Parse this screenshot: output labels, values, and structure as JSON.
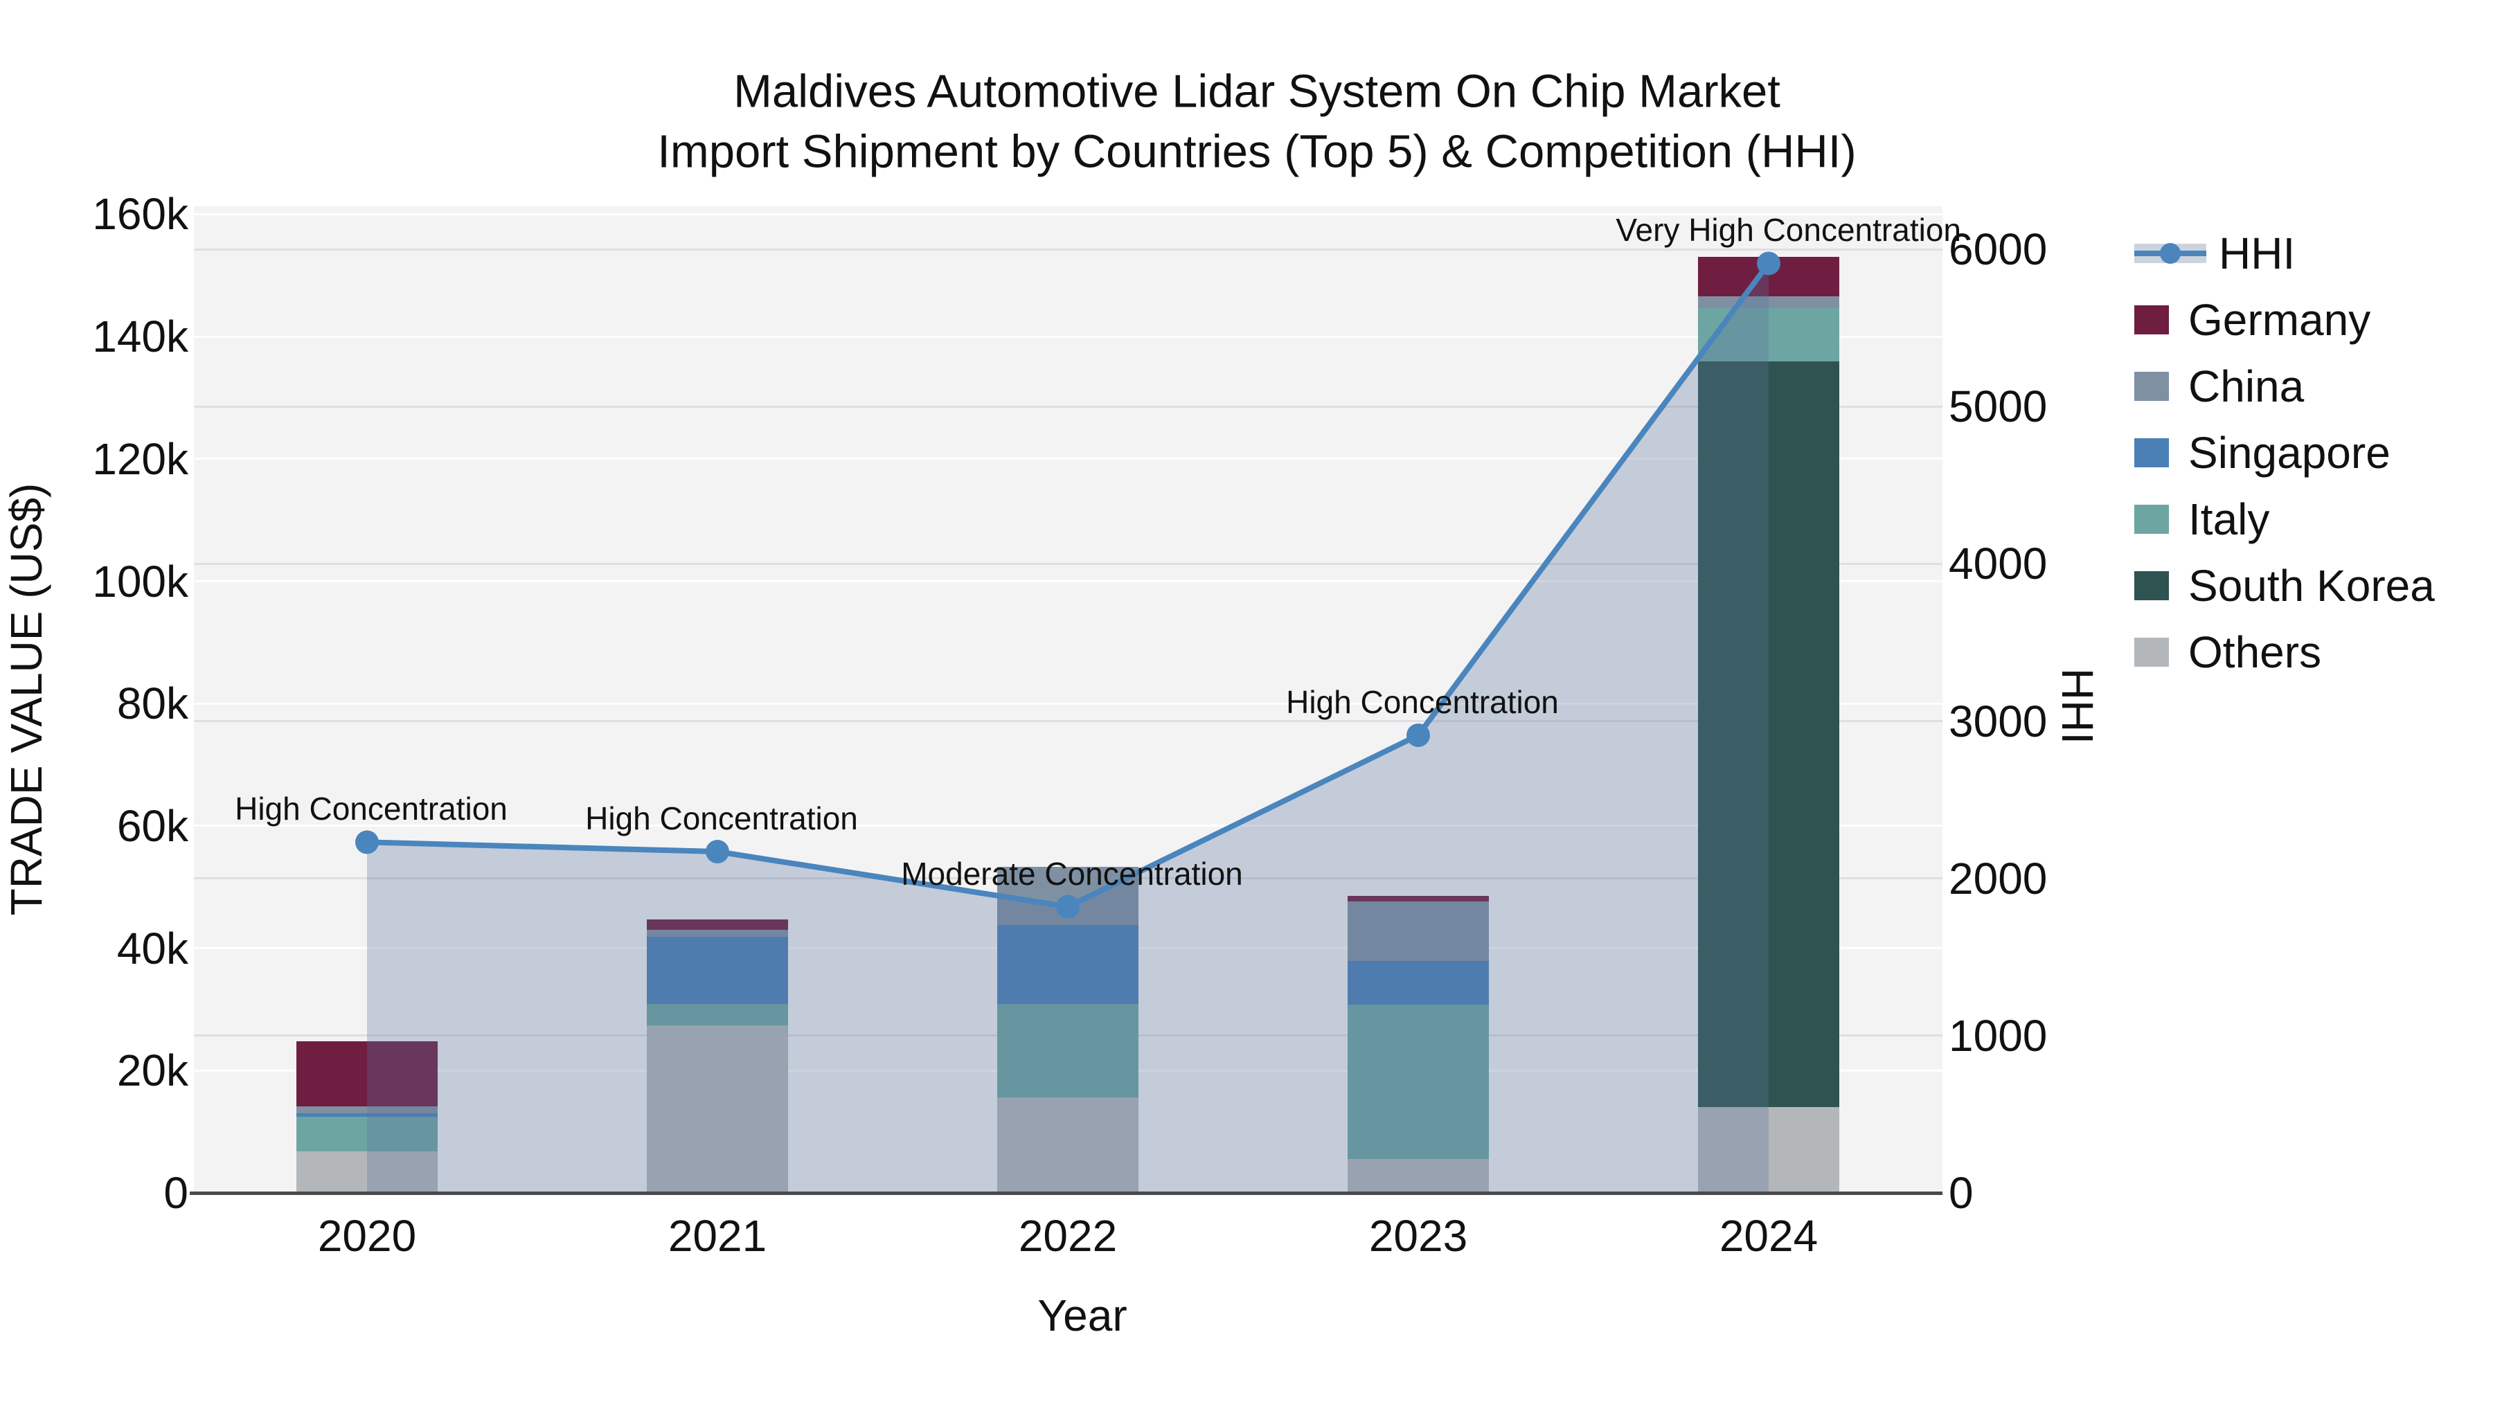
{
  "title": {
    "line1": "Maldives Automotive Lidar System On Chip Market",
    "line2": "Import Shipment by Countries (Top 5) & Competition (HHI)"
  },
  "chart_data": {
    "type": "bar+line",
    "categories": [
      "2020",
      "2021",
      "2022",
      "2023",
      "2024"
    ],
    "series": [
      {
        "name": "Others",
        "color": "#b4b7ba",
        "values": [
          6800,
          27400,
          15600,
          5500,
          14000
        ]
      },
      {
        "name": "South Korea",
        "color": "#2e5350",
        "values": [
          0,
          0,
          0,
          0,
          121900
        ]
      },
      {
        "name": "Italy",
        "color": "#6da5a3",
        "values": [
          5600,
          3500,
          15300,
          25300,
          8800
        ]
      },
      {
        "name": "Singapore",
        "color": "#4a80b6",
        "values": [
          600,
          11000,
          12900,
          7100,
          0
        ]
      },
      {
        "name": "China",
        "color": "#8090a3",
        "values": [
          1100,
          1100,
          9500,
          9700,
          1900
        ]
      },
      {
        "name": "Germany",
        "color": "#6f1d40",
        "values": [
          10700,
          1700,
          0,
          1000,
          6400
        ]
      }
    ],
    "line": {
      "name": "HHI",
      "color": "#4a85bd",
      "area_fill": "rgba(90,115,155,0.30)",
      "values": [
        2230,
        2170,
        1820,
        2910,
        5910
      ]
    },
    "annotations": [
      {
        "year": "2020",
        "text": "High Concentration"
      },
      {
        "year": "2021",
        "text": "High Concentration"
      },
      {
        "year": "2022",
        "text": "Moderate Concentration"
      },
      {
        "year": "2023",
        "text": "High Concentration"
      },
      {
        "year": "2024",
        "text": "Very High Concentration"
      }
    ],
    "y_left": {
      "label": "TRADE VALUE (US$)",
      "ticks": [
        "0",
        "20k",
        "40k",
        "60k",
        "80k",
        "100k",
        "120k",
        "140k",
        "160k"
      ],
      "min": 0,
      "max": 160000,
      "grid": true
    },
    "y_right": {
      "label": "HHI",
      "ticks": [
        "0",
        "1000",
        "2000",
        "3000",
        "4000",
        "5000",
        "6000"
      ],
      "min": 0,
      "max": 6000,
      "grid": true
    },
    "x": {
      "label": "Year"
    },
    "legend": {
      "position": "right",
      "items": [
        "HHI",
        "Germany",
        "China",
        "Singapore",
        "Italy",
        "South Korea",
        "Others"
      ]
    },
    "colors": {
      "plot_bg": "#f3f3f4",
      "grid_left": "rgba(255,255,255,0.9)",
      "grid_right": "rgba(150,155,165,0.22)",
      "axis_line": "#4a4a4a",
      "text": "#111111"
    }
  }
}
